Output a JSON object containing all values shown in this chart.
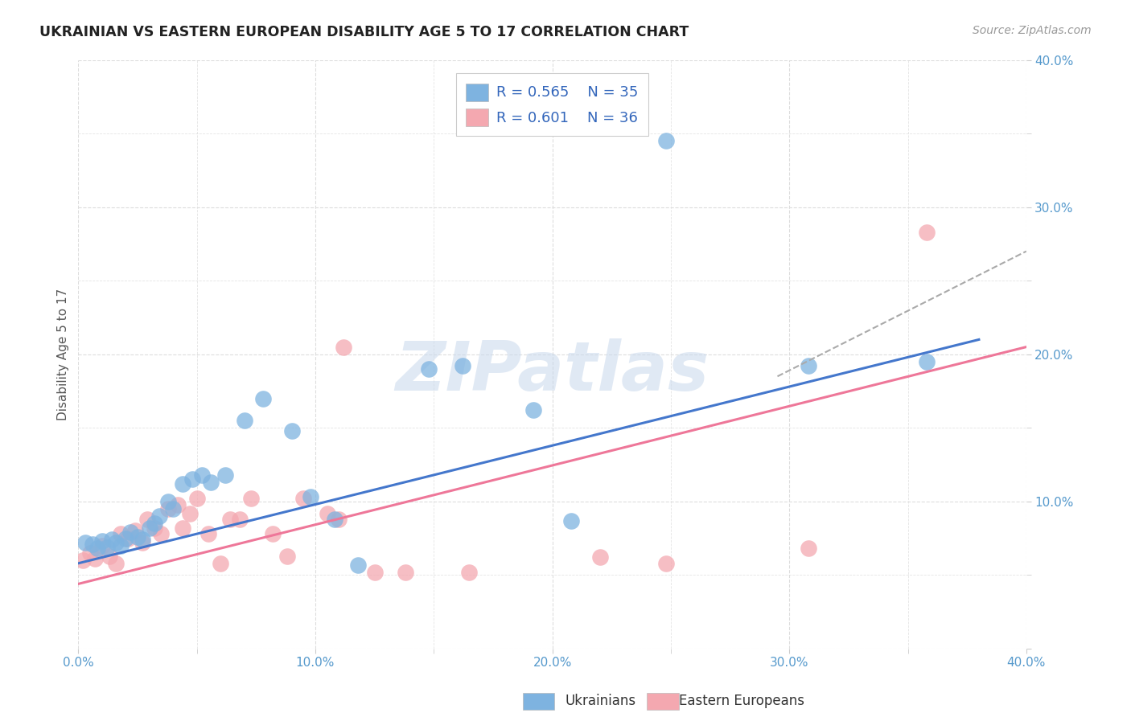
{
  "title": "UKRAINIAN VS EASTERN EUROPEAN DISABILITY AGE 5 TO 17 CORRELATION CHART",
  "source": "Source: ZipAtlas.com",
  "ylabel": "Disability Age 5 to 17",
  "xlim": [
    0.0,
    0.4
  ],
  "ylim": [
    0.0,
    0.4
  ],
  "legend_r_ukrainian": "R = 0.565",
  "legend_n_ukrainian": "N = 35",
  "legend_r_eastern": "R = 0.601",
  "legend_n_eastern": "N = 36",
  "watermark": "ZIPatlas",
  "ukrainian_color": "#7EB3E0",
  "eastern_color": "#F4A8B0",
  "ukrainian_scatter": [
    [
      0.003,
      0.072
    ],
    [
      0.006,
      0.071
    ],
    [
      0.008,
      0.068
    ],
    [
      0.01,
      0.073
    ],
    [
      0.012,
      0.069
    ],
    [
      0.014,
      0.074
    ],
    [
      0.016,
      0.072
    ],
    [
      0.018,
      0.07
    ],
    [
      0.02,
      0.075
    ],
    [
      0.022,
      0.079
    ],
    [
      0.025,
      0.076
    ],
    [
      0.027,
      0.074
    ],
    [
      0.03,
      0.082
    ],
    [
      0.032,
      0.085
    ],
    [
      0.034,
      0.09
    ],
    [
      0.038,
      0.1
    ],
    [
      0.04,
      0.095
    ],
    [
      0.044,
      0.112
    ],
    [
      0.048,
      0.115
    ],
    [
      0.052,
      0.118
    ],
    [
      0.056,
      0.113
    ],
    [
      0.062,
      0.118
    ],
    [
      0.07,
      0.155
    ],
    [
      0.078,
      0.17
    ],
    [
      0.09,
      0.148
    ],
    [
      0.098,
      0.103
    ],
    [
      0.108,
      0.088
    ],
    [
      0.118,
      0.057
    ],
    [
      0.148,
      0.19
    ],
    [
      0.162,
      0.192
    ],
    [
      0.192,
      0.162
    ],
    [
      0.208,
      0.087
    ],
    [
      0.248,
      0.345
    ],
    [
      0.308,
      0.192
    ],
    [
      0.358,
      0.195
    ]
  ],
  "eastern_scatter": [
    [
      0.002,
      0.06
    ],
    [
      0.005,
      0.065
    ],
    [
      0.007,
      0.061
    ],
    [
      0.01,
      0.07
    ],
    [
      0.013,
      0.063
    ],
    [
      0.016,
      0.058
    ],
    [
      0.018,
      0.078
    ],
    [
      0.021,
      0.075
    ],
    [
      0.024,
      0.08
    ],
    [
      0.027,
      0.072
    ],
    [
      0.029,
      0.088
    ],
    [
      0.032,
      0.082
    ],
    [
      0.035,
      0.078
    ],
    [
      0.038,
      0.095
    ],
    [
      0.042,
      0.098
    ],
    [
      0.044,
      0.082
    ],
    [
      0.047,
      0.092
    ],
    [
      0.05,
      0.102
    ],
    [
      0.055,
      0.078
    ],
    [
      0.06,
      0.058
    ],
    [
      0.064,
      0.088
    ],
    [
      0.068,
      0.088
    ],
    [
      0.073,
      0.102
    ],
    [
      0.082,
      0.078
    ],
    [
      0.088,
      0.063
    ],
    [
      0.095,
      0.102
    ],
    [
      0.105,
      0.092
    ],
    [
      0.11,
      0.088
    ],
    [
      0.112,
      0.205
    ],
    [
      0.125,
      0.052
    ],
    [
      0.138,
      0.052
    ],
    [
      0.165,
      0.052
    ],
    [
      0.22,
      0.062
    ],
    [
      0.248,
      0.058
    ],
    [
      0.308,
      0.068
    ],
    [
      0.358,
      0.283
    ]
  ],
  "ukrainian_line": [
    [
      0.0,
      0.058
    ],
    [
      0.38,
      0.21
    ]
  ],
  "eastern_line": [
    [
      0.0,
      0.044
    ],
    [
      0.4,
      0.205
    ]
  ],
  "ukrainian_ext_line": [
    [
      0.295,
      0.185
    ],
    [
      0.4,
      0.27
    ]
  ],
  "background_color": "#FFFFFF",
  "grid_color": "#DDDDDD",
  "tick_color": "#5599CC",
  "title_color": "#222222",
  "source_color": "#999999",
  "ylabel_color": "#555555",
  "legend_text_ukr_color": "#3366BB",
  "legend_text_eas_color": "#CC3366",
  "ukr_line_color": "#4477CC",
  "eas_line_color": "#EE7799",
  "ext_line_color": "#AAAAAA"
}
